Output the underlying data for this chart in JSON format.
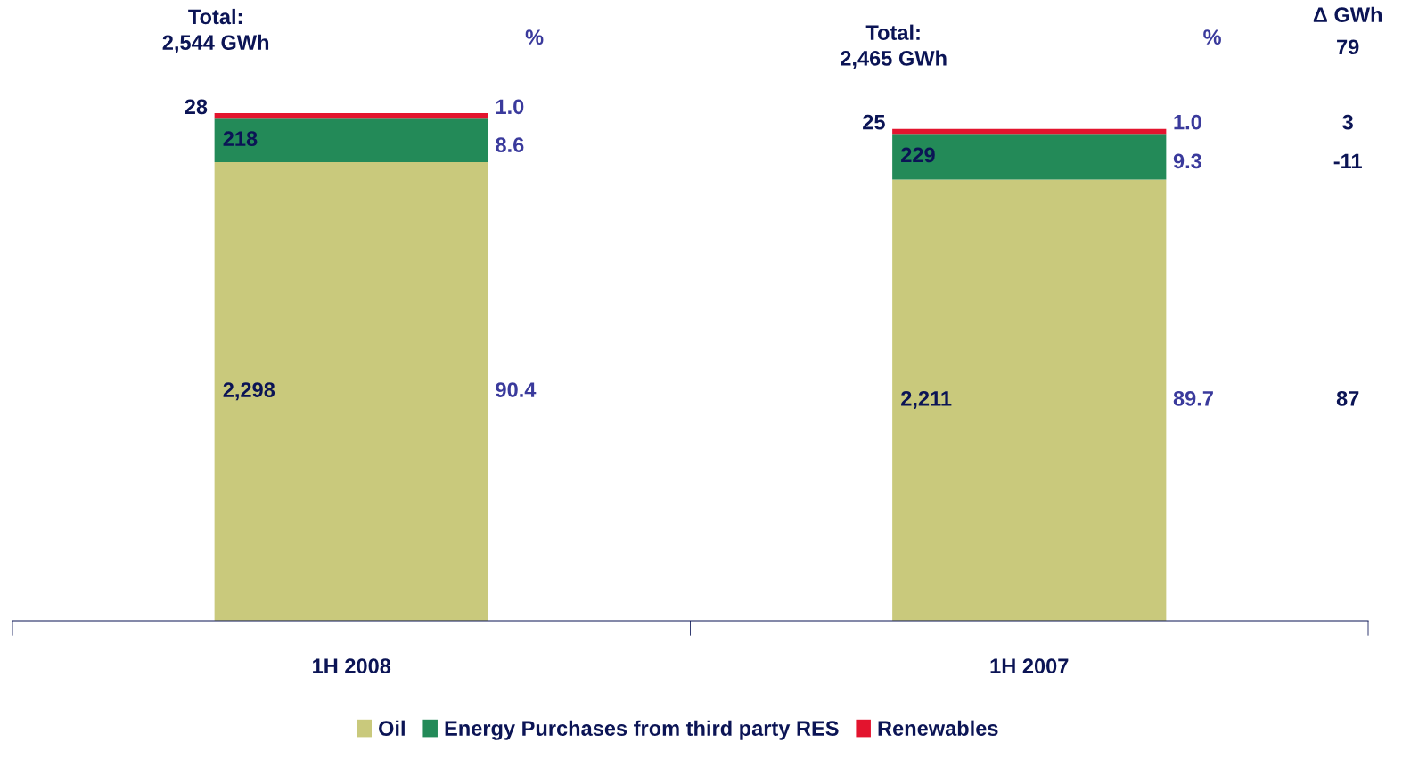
{
  "chart_data": {
    "type": "bar",
    "stacked": true,
    "categories": [
      "1H 2008",
      "1H 2007"
    ],
    "series": [
      {
        "name": "Oil",
        "color": "#c9c97c",
        "values": [
          2298,
          2211
        ],
        "value_labels": [
          "2,298",
          "2,211"
        ]
      },
      {
        "name": "Energy Purchases from third party RES",
        "color": "#238a58",
        "values": [
          218,
          229
        ],
        "value_labels": [
          "218",
          "229"
        ]
      },
      {
        "name": "Renewables",
        "color": "#e3142e",
        "values": [
          28,
          25
        ],
        "value_labels": [
          "28",
          "25"
        ]
      }
    ],
    "totals": [
      "Total:\n2,544 GWh",
      "Total:\n2,465 GWh"
    ],
    "annotations": [
      "%",
      "%",
      "Δ GWh",
      "79",
      "87",
      "-11",
      "3",
      "90.4",
      "8.6",
      "1.0",
      "89.7",
      "9.3",
      "1.0"
    ],
    "legend": "bottom",
    "grid": false
  }
}
